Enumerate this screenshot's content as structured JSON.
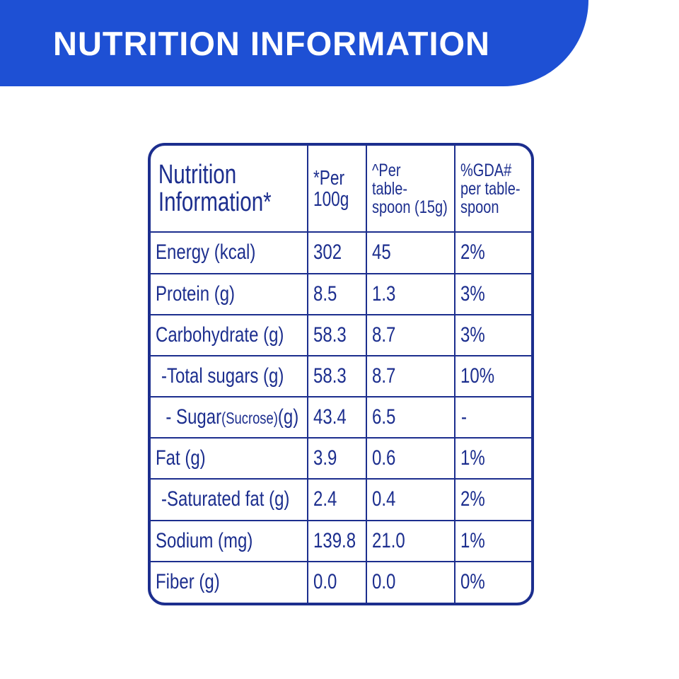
{
  "banner": {
    "title": "NUTRITION INFORMATION",
    "color": "#1e50d4"
  },
  "table": {
    "border_color": "#1c2e8e",
    "headers": {
      "col1_line1": "Nutrition",
      "col1_line2": "Information*",
      "col2_line1": "*Per",
      "col2_line2": "100g",
      "col3_line1": "^Per",
      "col3_line2": "table-",
      "col3_line3": "spoon (15g)",
      "col4_line1": "%GDA#",
      "col4_line2": "per table-",
      "col4_line3": "spoon"
    },
    "rows": [
      {
        "name": "Energy (kcal)",
        "per100": "302",
        "perTbsp": "45",
        "gda": "2%"
      },
      {
        "name": "Protein (g)",
        "per100": "8.5",
        "perTbsp": "1.3",
        "gda": "3%"
      },
      {
        "name": "Carbohydrate (g)",
        "per100": "58.3",
        "perTbsp": "8.7",
        "gda": "3%"
      },
      {
        "name": "-Total sugars (g)",
        "per100": "58.3",
        "perTbsp": "8.7",
        "gda": "10%"
      },
      {
        "name_main": "- Sugar",
        "name_sub": "(Sucrose)",
        "name_tail": "(g)",
        "per100": "43.4",
        "perTbsp": "6.5",
        "gda": "-"
      },
      {
        "name": "Fat (g)",
        "per100": "3.9",
        "perTbsp": "0.6",
        "gda": "1%"
      },
      {
        "name": "-Saturated fat (g)",
        "per100": "2.4",
        "perTbsp": "0.4",
        "gda": "2%"
      },
      {
        "name": "Sodium (mg)",
        "per100": "139.8",
        "perTbsp": "21.0",
        "gda": "1%"
      },
      {
        "name": "Fiber (g)",
        "per100": "0.0",
        "perTbsp": "0.0",
        "gda": "0%"
      }
    ]
  }
}
